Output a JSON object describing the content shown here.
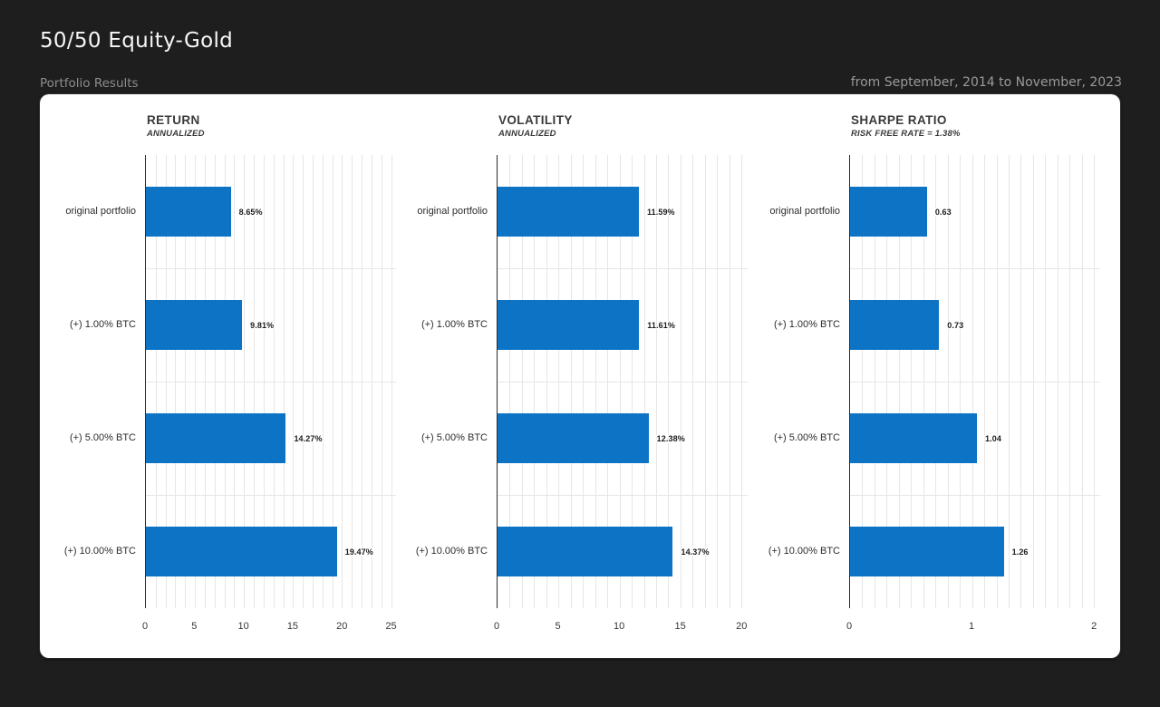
{
  "page": {
    "title": "50/50 Equity-Gold",
    "subtitle_left": "Portfolio Results",
    "subtitle_right": "from September, 2014 to November, 2023"
  },
  "colors": {
    "background": "#1e1e1f",
    "card": "#ffffff",
    "bar": "#0d74c5",
    "grid": "#e6e6e6",
    "spine": "#2c2c2c"
  },
  "chart_data": [
    {
      "type": "bar",
      "orientation": "horizontal",
      "title": "RETURN",
      "subtitle": "ANNUALIZED",
      "categories": [
        "original portfolio",
        "(+) 1.00% BTC",
        "(+) 5.00% BTC",
        "(+) 10.00% BTC"
      ],
      "values": [
        8.65,
        9.81,
        14.27,
        19.47
      ],
      "labels": [
        "8.65%",
        "9.81%",
        "14.27%",
        "19.47%"
      ],
      "xlim": [
        0,
        25.5
      ],
      "xticks": [
        0,
        5,
        10,
        15,
        20,
        25
      ],
      "minor_step": 1,
      "grid": true,
      "legend": false
    },
    {
      "type": "bar",
      "orientation": "horizontal",
      "title": "VOLATILITY",
      "subtitle": "ANNUALIZED",
      "categories": [
        "original portfolio",
        "(+) 1.00% BTC",
        "(+) 5.00% BTC",
        "(+) 10.00% BTC"
      ],
      "values": [
        11.59,
        11.61,
        12.38,
        14.37
      ],
      "labels": [
        "11.59%",
        "11.61%",
        "12.38%",
        "14.37%"
      ],
      "xlim": [
        0,
        20.5
      ],
      "xticks": [
        0,
        5,
        10,
        15,
        20
      ],
      "minor_step": 1,
      "grid": true,
      "legend": false
    },
    {
      "type": "bar",
      "orientation": "horizontal",
      "title": "SHARPE RATIO",
      "subtitle": "RISK FREE RATE = 1.38%",
      "categories": [
        "original portfolio",
        "(+) 1.00% BTC",
        "(+) 5.00% BTC",
        "(+) 10.00% BTC"
      ],
      "values": [
        0.63,
        0.73,
        1.04,
        1.26
      ],
      "labels": [
        "0.63",
        "0.73",
        "1.04",
        "1.26"
      ],
      "xlim": [
        0,
        2.05
      ],
      "xticks": [
        0,
        1,
        2
      ],
      "minor_step": 0.1,
      "grid": true,
      "legend": false
    }
  ],
  "chart_offsets": [
    -4,
    384,
    773
  ]
}
